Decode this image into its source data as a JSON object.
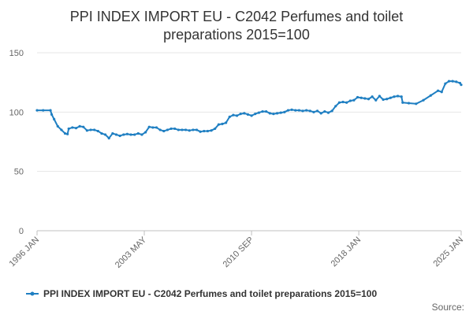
{
  "chart_data": {
    "type": "line",
    "title_lines": [
      "PPI INDEX IMPORT EU - C2042 Perfumes and toilet",
      "preparations 2015=100"
    ],
    "xlabel": "",
    "ylabel": "",
    "ylim": [
      0,
      150
    ],
    "yticks": [
      0,
      50,
      100,
      150
    ],
    "xlim": [
      "1996-01",
      "2025-01"
    ],
    "xticks": [
      {
        "label": "1996 JAN",
        "date": "1996-01"
      },
      {
        "label": "2003 MAY",
        "date": "2003-05"
      },
      {
        "label": "2010 SEP",
        "date": "2010-09"
      },
      {
        "label": "2018 JAN",
        "date": "2018-01"
      },
      {
        "label": "2025 JAN",
        "date": "2025-01"
      }
    ],
    "grid": "horizontal",
    "legend_position": "bottom",
    "series": [
      {
        "name": "PPI INDEX IMPORT EU - C2042 Perfumes and toilet preparations 2015=100",
        "color": "#1f7fc2",
        "points": [
          [
            "1996-01",
            101.5
          ],
          [
            "1996-06",
            101.5
          ],
          [
            "1996-12",
            101.5
          ],
          [
            "1997-01",
            98
          ],
          [
            "1997-03",
            94
          ],
          [
            "1997-06",
            88
          ],
          [
            "1997-09",
            85
          ],
          [
            "1997-12",
            82
          ],
          [
            "1998-02",
            81.5
          ],
          [
            "1998-03",
            86
          ],
          [
            "1998-06",
            87
          ],
          [
            "1998-09",
            86.5
          ],
          [
            "1998-12",
            88
          ],
          [
            "1999-03",
            87.5
          ],
          [
            "1999-06",
            84.5
          ],
          [
            "1999-09",
            85
          ],
          [
            "1999-12",
            85
          ],
          [
            "2000-03",
            84
          ],
          [
            "2000-06",
            82
          ],
          [
            "2000-09",
            81
          ],
          [
            "2000-12",
            78
          ],
          [
            "2001-03",
            82
          ],
          [
            "2001-06",
            81
          ],
          [
            "2001-09",
            80
          ],
          [
            "2001-12",
            81
          ],
          [
            "2002-03",
            81.5
          ],
          [
            "2002-06",
            81
          ],
          [
            "2002-09",
            81
          ],
          [
            "2002-12",
            82
          ],
          [
            "2003-03",
            81
          ],
          [
            "2003-06",
            83
          ],
          [
            "2003-09",
            87.5
          ],
          [
            "2003-12",
            87
          ],
          [
            "2004-03",
            87
          ],
          [
            "2004-06",
            85
          ],
          [
            "2004-09",
            84
          ],
          [
            "2004-12",
            85
          ],
          [
            "2005-03",
            86
          ],
          [
            "2005-06",
            86
          ],
          [
            "2005-09",
            85
          ],
          [
            "2005-12",
            85
          ],
          [
            "2006-03",
            85
          ],
          [
            "2006-06",
            84.5
          ],
          [
            "2006-09",
            85
          ],
          [
            "2006-12",
            85
          ],
          [
            "2007-03",
            83.5
          ],
          [
            "2007-06",
            84
          ],
          [
            "2007-09",
            84
          ],
          [
            "2007-12",
            84.5
          ],
          [
            "2008-03",
            86
          ],
          [
            "2008-06",
            89.5
          ],
          [
            "2008-09",
            90
          ],
          [
            "2008-12",
            91
          ],
          [
            "2009-03",
            96
          ],
          [
            "2009-06",
            97.5
          ],
          [
            "2009-09",
            97
          ],
          [
            "2009-12",
            98.5
          ],
          [
            "2010-03",
            99
          ],
          [
            "2010-06",
            98
          ],
          [
            "2010-09",
            97
          ],
          [
            "2010-12",
            98.5
          ],
          [
            "2011-03",
            99.5
          ],
          [
            "2011-06",
            100.5
          ],
          [
            "2011-09",
            100.5
          ],
          [
            "2011-12",
            99
          ],
          [
            "2012-03",
            98.5
          ],
          [
            "2012-06",
            99
          ],
          [
            "2012-09",
            99.5
          ],
          [
            "2012-12",
            100
          ],
          [
            "2013-03",
            101.5
          ],
          [
            "2013-06",
            102
          ],
          [
            "2013-09",
            101.5
          ],
          [
            "2013-12",
            101.5
          ],
          [
            "2014-03",
            101
          ],
          [
            "2014-06",
            101.5
          ],
          [
            "2014-09",
            101
          ],
          [
            "2014-12",
            100
          ],
          [
            "2015-03",
            101
          ],
          [
            "2015-06",
            99
          ],
          [
            "2015-09",
            100.5
          ],
          [
            "2015-12",
            99.5
          ],
          [
            "2016-03",
            101
          ],
          [
            "2016-06",
            105
          ],
          [
            "2016-09",
            108
          ],
          [
            "2016-12",
            108.5
          ],
          [
            "2017-03",
            108
          ],
          [
            "2017-06",
            109.5
          ],
          [
            "2017-09",
            110
          ],
          [
            "2017-12",
            112.5
          ],
          [
            "2018-03",
            112
          ],
          [
            "2018-06",
            111.5
          ],
          [
            "2018-09",
            111
          ],
          [
            "2018-12",
            113
          ],
          [
            "2019-03",
            110
          ],
          [
            "2019-06",
            113.5
          ],
          [
            "2019-09",
            110.5
          ],
          [
            "2019-12",
            111
          ],
          [
            "2020-03",
            112
          ],
          [
            "2020-06",
            113
          ],
          [
            "2020-09",
            113.5
          ],
          [
            "2020-12",
            113
          ],
          [
            "2021-01",
            108
          ],
          [
            "2021-06",
            107.5
          ],
          [
            "2021-12",
            107
          ],
          [
            "2022-06",
            110
          ],
          [
            "2022-12",
            114
          ],
          [
            "2023-06",
            118
          ],
          [
            "2023-09",
            117
          ],
          [
            "2023-12",
            124
          ],
          [
            "2024-03",
            126
          ],
          [
            "2024-06",
            126
          ],
          [
            "2024-09",
            125.5
          ],
          [
            "2024-12",
            124.5
          ],
          [
            "2025-01",
            123
          ]
        ]
      }
    ]
  },
  "source_label": "Source:"
}
